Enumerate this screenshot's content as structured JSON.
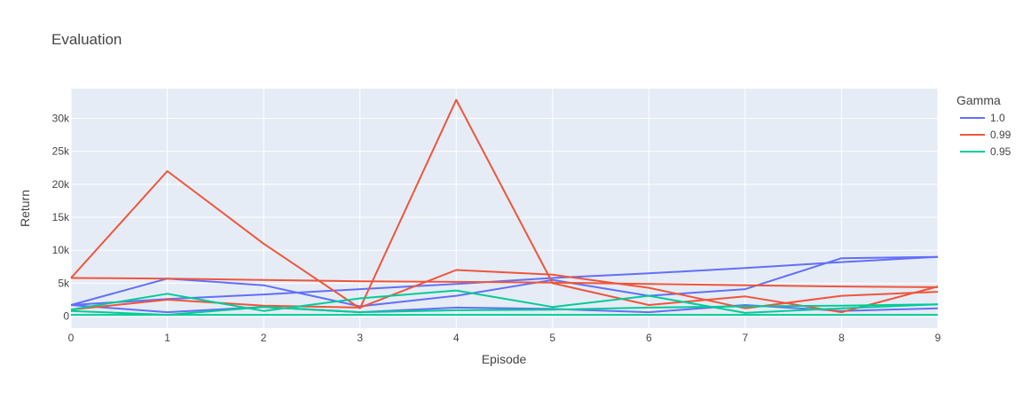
{
  "chart_data": {
    "type": "line",
    "title": "Evaluation",
    "xlabel": "Episode",
    "ylabel": "Return",
    "xlim": [
      0,
      9
    ],
    "ylim": [
      -1800,
      34500
    ],
    "x_ticks": [
      0,
      1,
      2,
      3,
      4,
      5,
      6,
      7,
      8,
      9
    ],
    "y_ticks": [
      {
        "value": 0,
        "label": "0"
      },
      {
        "value": 5000,
        "label": "5k"
      },
      {
        "value": 10000,
        "label": "10k"
      },
      {
        "value": 15000,
        "label": "15k"
      },
      {
        "value": 20000,
        "label": "20k"
      },
      {
        "value": 25000,
        "label": "25k"
      },
      {
        "value": 30000,
        "label": "30k"
      }
    ],
    "grid": true,
    "legend": {
      "title": "Gamma",
      "position": "right",
      "entries": [
        {
          "name": "1.0",
          "color": "#636efa"
        },
        {
          "name": "0.99",
          "color": "#ef553b"
        },
        {
          "name": "0.95",
          "color": "#00cc96"
        }
      ]
    },
    "x": [
      0,
      1,
      2,
      3,
      4,
      5,
      6,
      7,
      8,
      9
    ],
    "series": [
      {
        "group": "1.0",
        "color": "#636efa",
        "values": [
          1700,
          2600,
          3300,
          4100,
          4900,
          5800,
          6500,
          7300,
          8200,
          9000
        ]
      },
      {
        "group": "1.0",
        "color": "#636efa",
        "values": [
          1700,
          600,
          1400,
          600,
          1300,
          1100,
          600,
          1700,
          800,
          1200
        ]
      },
      {
        "group": "1.0",
        "color": "#636efa",
        "values": [
          1700,
          5700,
          4700,
          1500,
          3100,
          5500,
          3100,
          4100,
          8800,
          9000
        ]
      },
      {
        "group": "0.99",
        "color": "#ef553b",
        "values": [
          5800,
          22000,
          11000,
          1200,
          32800,
          5000,
          1700,
          3000,
          600,
          4500
        ]
      },
      {
        "group": "0.99",
        "color": "#ef553b",
        "values": [
          5800,
          5700,
          5500,
          5300,
          5200,
          5100,
          4900,
          4700,
          4500,
          4400
        ]
      },
      {
        "group": "0.99",
        "color": "#ef553b",
        "values": [
          1000,
          2500,
          1600,
          1300,
          7000,
          6300,
          4300,
          1200,
          3100,
          3700
        ]
      },
      {
        "group": "0.95",
        "color": "#00cc96",
        "values": [
          1000,
          3400,
          800,
          2700,
          3900,
          1400,
          3100,
          500,
          1200,
          1800
        ]
      },
      {
        "group": "0.95",
        "color": "#00cc96",
        "values": [
          800,
          200,
          1400,
          600,
          900,
          1000,
          1300,
          1500,
          1600,
          1800
        ]
      },
      {
        "group": "0.95",
        "color": "#00cc96",
        "values": [
          200,
          200,
          200,
          200,
          200,
          200,
          200,
          200,
          200,
          200
        ]
      }
    ]
  }
}
